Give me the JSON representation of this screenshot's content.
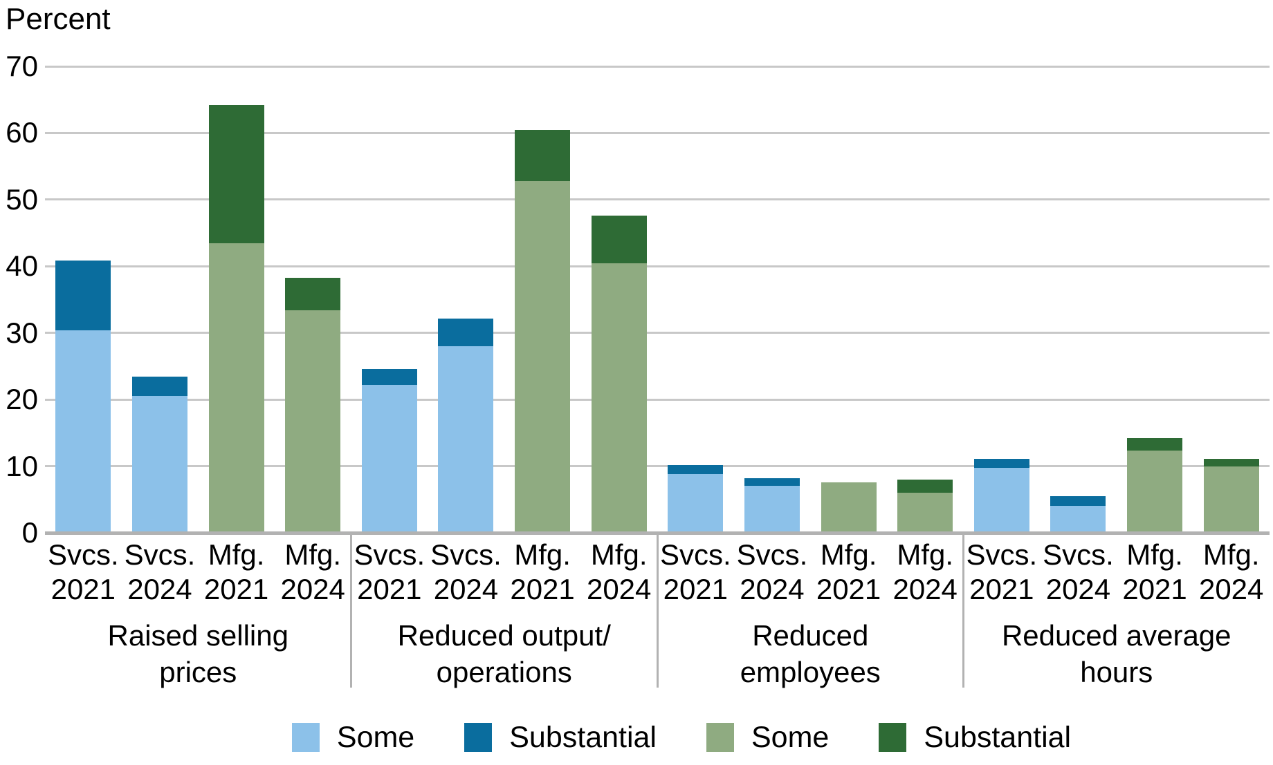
{
  "y_axis": {
    "title": "Percent",
    "ticks": [
      0,
      10,
      20,
      30,
      40,
      50,
      60,
      70
    ],
    "max": 70
  },
  "colors": {
    "services": {
      "some": "#8cc1e9",
      "substantial": "#0a6d9e"
    },
    "manufacturing": {
      "some": "#8fab81",
      "substantial": "#2e6b35"
    },
    "gridline": "#c8c8c8",
    "baseline": "#b2b2b2",
    "separator": "#b2b2b2"
  },
  "legend": [
    {
      "label": "Some",
      "sector": "services",
      "type": "some"
    },
    {
      "label": "Substantial",
      "sector": "services",
      "type": "substantial"
    },
    {
      "label": "Some",
      "sector": "manufacturing",
      "type": "some"
    },
    {
      "label": "Substantial",
      "sector": "manufacturing",
      "type": "substantial"
    }
  ],
  "chart_data": {
    "type": "bar",
    "stacked": true,
    "ylabel": "Percent",
    "ylim": [
      0,
      70
    ],
    "grid": "horizontal",
    "legend_position": "bottom",
    "stack_order_note": "Some on bottom, Substantial stacked on top; blue = services, green = manufacturing",
    "groups": [
      {
        "label": "Raised selling prices",
        "label_lines": [
          "Raised selling",
          "prices"
        ],
        "bars": [
          {
            "category": "Svcs. 2021",
            "cat_lines": [
              "Svcs.",
              "2021"
            ],
            "sector": "services",
            "some": 30.4,
            "substantial": 10.5,
            "total": 40.9
          },
          {
            "category": "Svcs. 2024",
            "cat_lines": [
              "Svcs.",
              "2024"
            ],
            "sector": "services",
            "some": 20.5,
            "substantial": 2.9,
            "total": 23.4
          },
          {
            "category": "Mfg. 2021",
            "cat_lines": [
              "Mfg.",
              "2021"
            ],
            "sector": "manufacturing",
            "some": 43.4,
            "substantial": 20.8,
            "total": 64.2
          },
          {
            "category": "Mfg. 2024",
            "cat_lines": [
              "Mfg.",
              "2024"
            ],
            "sector": "manufacturing",
            "some": 33.4,
            "substantial": 4.9,
            "total": 38.3
          }
        ]
      },
      {
        "label": "Reduced output/operations",
        "label_lines": [
          "Reduced output/",
          "operations"
        ],
        "bars": [
          {
            "category": "Svcs. 2021",
            "cat_lines": [
              "Svcs.",
              "2021"
            ],
            "sector": "services",
            "some": 22.2,
            "substantial": 2.4,
            "total": 24.6
          },
          {
            "category": "Svcs. 2024",
            "cat_lines": [
              "Svcs.",
              "2024"
            ],
            "sector": "services",
            "some": 28.0,
            "substantial": 4.2,
            "total": 32.2
          },
          {
            "category": "Mfg. 2021",
            "cat_lines": [
              "Mfg.",
              "2021"
            ],
            "sector": "manufacturing",
            "some": 52.8,
            "substantial": 7.7,
            "total": 60.5
          },
          {
            "category": "Mfg. 2024",
            "cat_lines": [
              "Mfg.",
              "2024"
            ],
            "sector": "manufacturing",
            "some": 40.4,
            "substantial": 7.2,
            "total": 47.6
          }
        ]
      },
      {
        "label": "Reduced employees",
        "label_lines": [
          "Reduced",
          "employees"
        ],
        "bars": [
          {
            "category": "Svcs. 2021",
            "cat_lines": [
              "Svcs.",
              "2021"
            ],
            "sector": "services",
            "some": 8.8,
            "substantial": 1.4,
            "total": 10.2
          },
          {
            "category": "Svcs. 2024",
            "cat_lines": [
              "Svcs.",
              "2024"
            ],
            "sector": "services",
            "some": 7.0,
            "substantial": 1.2,
            "total": 8.2
          },
          {
            "category": "Mfg. 2021",
            "cat_lines": [
              "Mfg.",
              "2021"
            ],
            "sector": "manufacturing",
            "some": 7.6,
            "substantial": 0,
            "total": 7.6
          },
          {
            "category": "Mfg. 2024",
            "cat_lines": [
              "Mfg.",
              "2024"
            ],
            "sector": "manufacturing",
            "some": 6.0,
            "substantial": 2.0,
            "total": 8.0
          }
        ]
      },
      {
        "label": "Reduced average hours",
        "label_lines": [
          "Reduced average",
          "hours"
        ],
        "bars": [
          {
            "category": "Svcs. 2021",
            "cat_lines": [
              "Svcs.",
              "2021"
            ],
            "sector": "services",
            "some": 9.7,
            "substantial": 1.4,
            "total": 11.1
          },
          {
            "category": "Svcs. 2024",
            "cat_lines": [
              "Svcs.",
              "2024"
            ],
            "sector": "services",
            "some": 4.0,
            "substantial": 1.5,
            "total": 5.5
          },
          {
            "category": "Mfg. 2021",
            "cat_lines": [
              "Mfg.",
              "2021"
            ],
            "sector": "manufacturing",
            "some": 12.3,
            "substantial": 1.9,
            "total": 14.2
          },
          {
            "category": "Mfg. 2024",
            "cat_lines": [
              "Mfg.",
              "2024"
            ],
            "sector": "manufacturing",
            "some": 10.0,
            "substantial": 1.1,
            "total": 11.1
          }
        ]
      }
    ]
  }
}
